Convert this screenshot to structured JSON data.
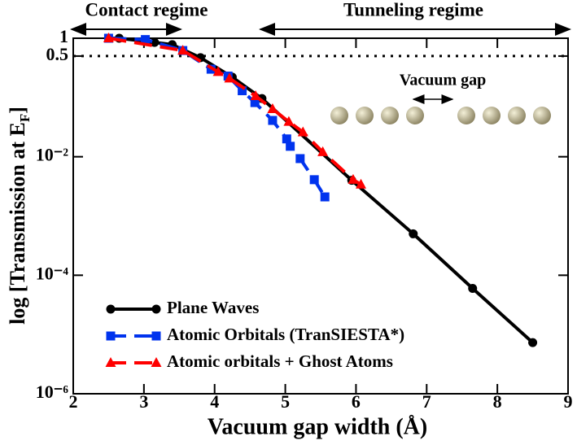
{
  "chart_data": {
    "type": "line",
    "xlabel": "Vacuum gap width (Å)",
    "ylabel": [
      "log [Transmission  at E",
      "F",
      "]"
    ],
    "log_y": true,
    "xlim": [
      2,
      9
    ],
    "ylim": [
      1e-06,
      1
    ],
    "xticks": [
      2,
      3,
      4,
      5,
      6,
      7,
      8,
      9
    ],
    "yticks": [
      {
        "value": 1e-06,
        "label": "10⁻⁶"
      },
      {
        "value": 0.0001,
        "label": "10⁻⁴"
      },
      {
        "value": 0.01,
        "label": "10⁻²"
      },
      0.5,
      1
    ],
    "reference_line": 0.5,
    "annotations": [
      "Contact regime",
      "Tunneling regime",
      "Vacuum gap"
    ],
    "legend": "lower left",
    "series": [
      {
        "name": "Plane Waves",
        "color": "#000000",
        "marker": "circle",
        "dashed": false,
        "x": [
          2.5,
          2.65,
          3.15,
          3.4,
          3.8,
          4.25,
          4.67,
          5.94,
          6.81,
          7.65,
          8.5
        ],
        "values": [
          1.0,
          1.0,
          0.85,
          0.78,
          0.47,
          0.22,
          0.096,
          0.004,
          0.0005,
          6e-05,
          7.3e-06
        ]
      },
      {
        "name": "Atomic Orbitals  (TranSIESTA*)",
        "color": "#0033ee",
        "marker": "square",
        "dashed": true,
        "x": [
          2.5,
          3.02,
          3.55,
          3.95,
          4.19,
          4.39,
          4.57,
          4.82,
          5.02,
          5.07,
          5.21,
          5.41,
          5.56
        ],
        "values": [
          1.0,
          0.95,
          0.62,
          0.3,
          0.23,
          0.13,
          0.082,
          0.041,
          0.02,
          0.015,
          0.0093,
          0.0041,
          0.0021
        ]
      },
      {
        "name": "Atomic orbitals + Ghost Atoms",
        "color": "#ff0000",
        "marker": "triangle",
        "dashed": true,
        "x": [
          2.5,
          3.55,
          4.05,
          4.21,
          4.58,
          4.82,
          5.05,
          5.25,
          5.53,
          5.96,
          6.07
        ],
        "values": [
          1.0,
          0.62,
          0.27,
          0.21,
          0.106,
          0.064,
          0.039,
          0.026,
          0.012,
          0.0041,
          0.0034
        ]
      }
    ]
  }
}
